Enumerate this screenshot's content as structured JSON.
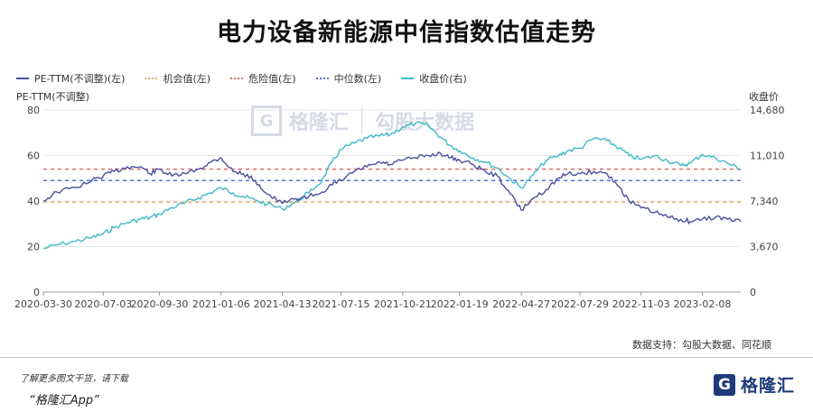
{
  "title": "电力设备新能源中信指数估值走势",
  "legend": [
    {
      "label": "PE-TTM(不调整)(左)",
      "color": "#4a4f9e",
      "style": "solid"
    },
    {
      "label": "机会值(左)",
      "color": "#e0b070",
      "style": "dotted"
    },
    {
      "label": "危险值(左)",
      "color": "#e06a6a",
      "style": "dotted"
    },
    {
      "label": "中位数(左)",
      "color": "#5a6fe0",
      "style": "dotted"
    },
    {
      "label": "收盘价(右)",
      "color": "#3fb8c8",
      "style": "solid"
    }
  ],
  "left_axis_title": "PE-TTM(不调整)",
  "right_axis_title": "收盘价",
  "source": "数据支持：勾股大数据、同花顺",
  "footer": {
    "note": "了解更多图文干货，请下载",
    "app": "“格隆汇App”",
    "logo_text": "格隆汇",
    "logo_mark": "G"
  },
  "watermark": {
    "mark": "G",
    "left": "格隆汇",
    "right": "勾股大数据"
  },
  "colors": {
    "pe": "#4a4f9e",
    "close": "#3fb8c8",
    "opportunity": "#e0b070",
    "danger": "#e06a6a",
    "median": "#5a6fe0",
    "grid": "#e6e6e6",
    "axis_text": "#444"
  },
  "chart_data": {
    "type": "line",
    "x_ticks": [
      "2020-03-30",
      "2020-07-03",
      "2020-09-30",
      "2021-01-06",
      "2021-04-13",
      "2021-07-15",
      "2021-10-21",
      "2022-01-19",
      "2022-04-27",
      "2022-07-29",
      "2022-11-03",
      "2023-02-08"
    ],
    "x_points": [
      "2020-03-30",
      "2020-04-20",
      "2020-05-20",
      "2020-06-15",
      "2020-07-03",
      "2020-07-20",
      "2020-08-10",
      "2020-09-01",
      "2020-09-15",
      "2020-09-30",
      "2020-10-20",
      "2020-11-10",
      "2020-12-01",
      "2020-12-20",
      "2021-01-06",
      "2021-01-25",
      "2021-02-10",
      "2021-03-01",
      "2021-03-20",
      "2021-04-13",
      "2021-05-05",
      "2021-05-25",
      "2021-06-15",
      "2021-07-01",
      "2021-07-15",
      "2021-08-05",
      "2021-08-25",
      "2021-09-15",
      "2021-10-01",
      "2021-10-21",
      "2021-11-10",
      "2021-12-01",
      "2021-12-20",
      "2022-01-05",
      "2022-01-19",
      "2022-02-10",
      "2022-03-01",
      "2022-03-20",
      "2022-04-10",
      "2022-04-27",
      "2022-05-15",
      "2022-06-05",
      "2022-06-25",
      "2022-07-10",
      "2022-07-29",
      "2022-08-20",
      "2022-09-10",
      "2022-09-30",
      "2022-10-15",
      "2022-11-03",
      "2022-11-25",
      "2022-12-15",
      "2023-01-05",
      "2023-01-20",
      "2023-02-08",
      "2023-03-01",
      "2023-03-20",
      "2023-04-10"
    ],
    "series": [
      {
        "name": "PE-TTM(不调整)(左)",
        "axis": "left",
        "values": [
          40,
          44,
          46,
          49,
          51,
          53,
          55,
          55,
          52,
          54,
          51,
          52,
          54,
          57,
          59,
          53,
          52,
          49,
          43,
          39,
          41,
          42,
          44,
          47,
          49,
          53,
          55,
          57,
          56,
          58,
          59,
          60,
          61,
          59,
          58,
          56,
          53,
          51,
          43,
          36,
          41,
          45,
          50,
          52,
          52,
          53,
          52,
          46,
          40,
          37,
          35,
          33,
          32,
          31,
          32,
          33,
          32,
          31
        ]
      },
      {
        "name": "收盘价(右)",
        "axis": "right",
        "values": [
          3500,
          3800,
          4100,
          4400,
          4700,
          5200,
          5600,
          5900,
          6000,
          6300,
          6800,
          7200,
          7600,
          8000,
          8400,
          8000,
          7700,
          7400,
          7100,
          6700,
          7300,
          8000,
          9000,
          10500,
          11500,
          12000,
          12400,
          12600,
          12700,
          13300,
          13600,
          13400,
          12500,
          11800,
          11400,
          10800,
          10500,
          10000,
          9100,
          8400,
          9400,
          10600,
          11000,
          11400,
          11600,
          12400,
          12200,
          11600,
          11000,
          10700,
          11000,
          10600,
          10200,
          10400,
          11100,
          10800,
          10400,
          9900
        ]
      },
      {
        "name": "机会值(左)",
        "axis": "left",
        "values": [
          39.5
        ]
      },
      {
        "name": "危险值(左)",
        "axis": "left",
        "values": [
          54
        ]
      },
      {
        "name": "中位数(左)",
        "axis": "left",
        "values": [
          49
        ]
      }
    ],
    "left_ylim": [
      0,
      80
    ],
    "right_ylim": [
      0,
      14680
    ],
    "left_ticks": [
      "0",
      "20",
      "40",
      "60",
      "80"
    ],
    "right_ticks": [
      "0",
      "3,670",
      "7,340",
      "11,010",
      "14,680"
    ],
    "grid": true,
    "legend_position": "top-left"
  }
}
